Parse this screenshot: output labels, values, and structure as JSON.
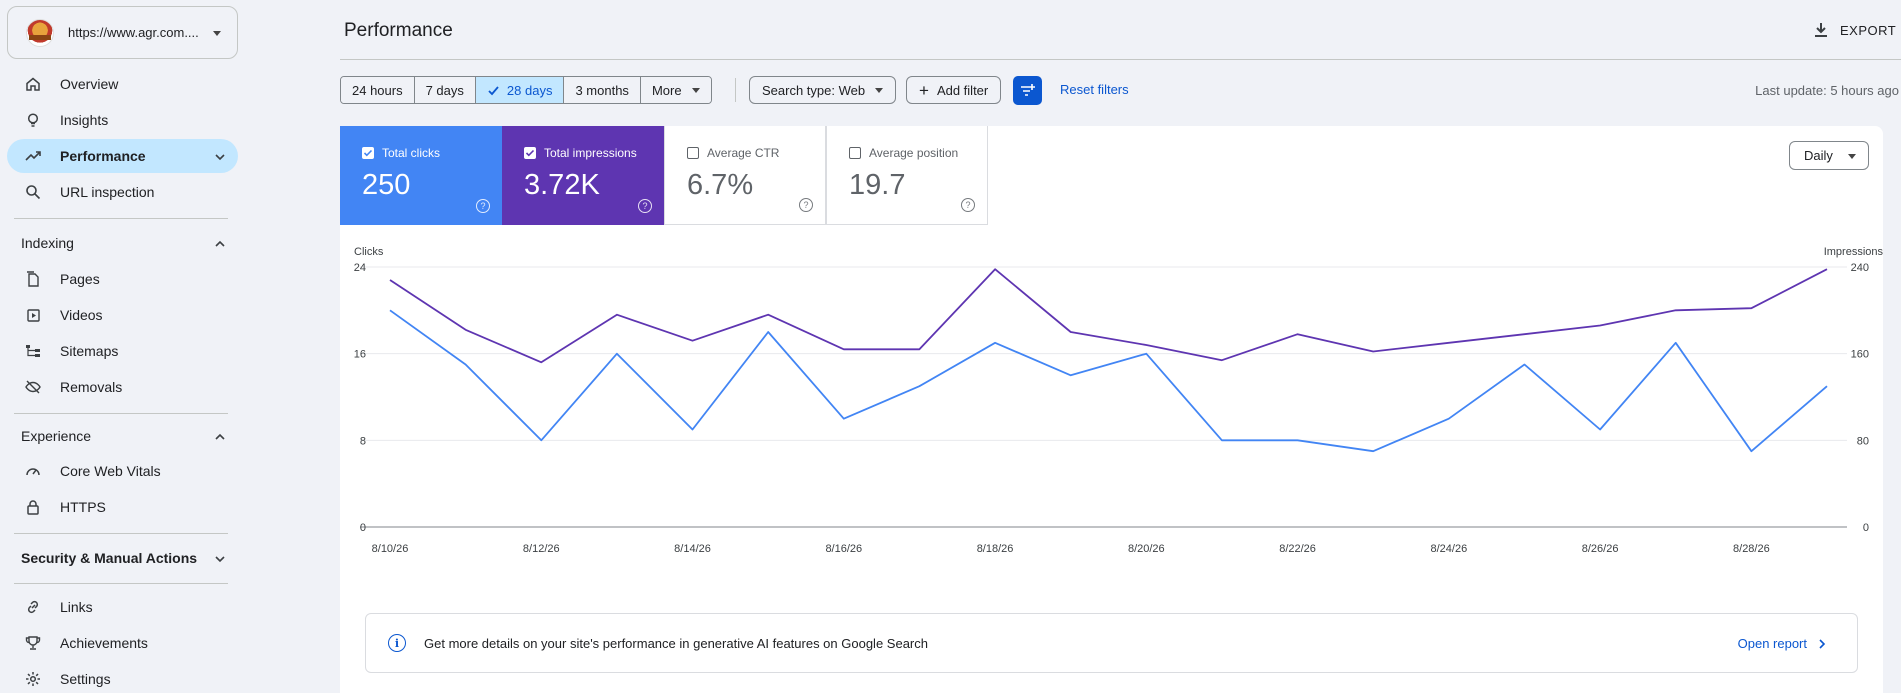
{
  "property": {
    "url": "https://www.agr.com...."
  },
  "nav": {
    "top": [
      {
        "label": "Overview",
        "icon": "home-icon"
      },
      {
        "label": "Insights",
        "icon": "lightbulb-icon"
      },
      {
        "label": "Performance",
        "icon": "trending-up-icon",
        "active": true
      },
      {
        "label": "URL inspection",
        "icon": "search-icon"
      }
    ],
    "indexing": {
      "title": "Indexing",
      "items": [
        "Pages",
        "Videos",
        "Sitemaps",
        "Removals"
      ]
    },
    "experience": {
      "title": "Experience",
      "items": [
        "Core Web Vitals",
        "HTTPS"
      ]
    },
    "security": {
      "title": "Security & Manual Actions"
    },
    "bottom": [
      "Links",
      "Achievements",
      "Settings"
    ]
  },
  "header": {
    "title": "Performance",
    "export": "EXPORT"
  },
  "filters": {
    "ranges": [
      "24 hours",
      "7 days",
      "28 days",
      "3 months",
      "More"
    ],
    "selected_range": "28 days",
    "search_type": "Search type: Web",
    "add_filter": "Add filter",
    "reset": "Reset filters",
    "last_update": "Last update: 5 hours ago"
  },
  "metrics": [
    {
      "label": "Total clicks",
      "value": "250",
      "checked": true,
      "color": "#4285f4"
    },
    {
      "label": "Total impressions",
      "value": "3.72K",
      "checked": true,
      "color": "#5e35b1"
    },
    {
      "label": "Average CTR",
      "value": "6.7%",
      "checked": false
    },
    {
      "label": "Average position",
      "value": "19.7",
      "checked": false
    }
  ],
  "granularity": "Daily",
  "chart_data": {
    "type": "line",
    "x": [
      "8/10/26",
      "8/11/26",
      "8/12/26",
      "8/13/26",
      "8/14/26",
      "8/15/26",
      "8/16/26",
      "8/17/26",
      "8/18/26",
      "8/19/26",
      "8/20/26",
      "8/21/26",
      "8/22/26",
      "8/23/26",
      "8/24/26",
      "8/25/26",
      "8/26/26",
      "8/27/26",
      "8/28/26",
      "8/29/26"
    ],
    "x_tick_labels": [
      "8/10/26",
      "8/12/26",
      "8/14/26",
      "8/16/26",
      "8/18/26",
      "8/20/26",
      "8/22/26",
      "8/24/26",
      "8/26/26",
      "8/28/26"
    ],
    "series": [
      {
        "name": "Clicks",
        "axis": "left",
        "color": "#4285f4",
        "values": [
          20,
          15,
          8,
          16,
          9,
          18,
          10,
          13,
          17,
          14,
          16,
          8,
          8,
          7,
          10,
          15,
          9,
          17,
          7,
          13
        ]
      },
      {
        "name": "Impressions",
        "axis": "right",
        "color": "#5e35b1",
        "values": [
          228,
          182,
          152,
          196,
          172,
          196,
          164,
          164,
          238,
          180,
          168,
          154,
          178,
          162,
          170,
          178,
          186,
          200,
          202,
          238
        ]
      }
    ],
    "ylabel_left": "Clicks",
    "ylabel_right": "Impressions",
    "ylim_left": [
      0,
      24
    ],
    "ylim_right": [
      0,
      240
    ],
    "yticks_left": [
      "0",
      "8",
      "16",
      "24"
    ],
    "yticks_right": [
      "0",
      "80",
      "160",
      "240"
    ],
    "grid": true
  },
  "banner": {
    "text": "Get more details on your site's performance in generative AI features on Google Search",
    "link": "Open report"
  }
}
